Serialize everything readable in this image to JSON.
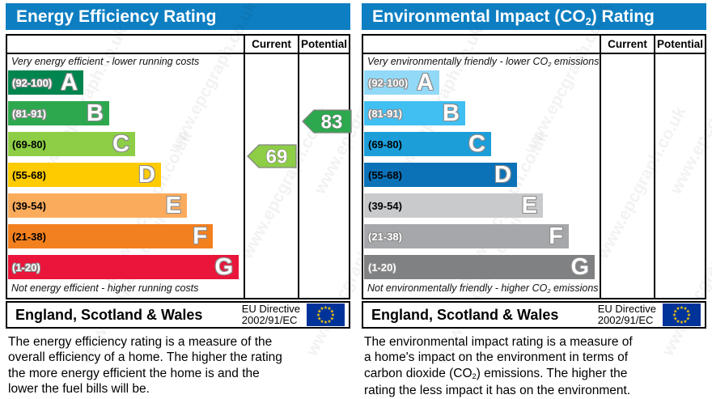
{
  "watermark": "www.epcgraph.co.uk",
  "panels": [
    {
      "title_parts": {
        "pre": "Energy Efficiency Rating",
        "sub": "",
        "post": ""
      },
      "columns": {
        "current": "Current",
        "potential": "Potential"
      },
      "top_caption_parts": {
        "pre": "Very energy efficient - lower running costs",
        "sub": "",
        "post": ""
      },
      "bottom_caption_parts": {
        "pre": "Not energy efficient - higher running costs",
        "sub": "",
        "post": ""
      },
      "bands": [
        {
          "letter": "A",
          "range": "(92-100)",
          "color": "#00854f",
          "label_color": "#ffffff"
        },
        {
          "letter": "B",
          "range": "(81-91)",
          "color": "#2da84e",
          "label_color": "#ffffff"
        },
        {
          "letter": "C",
          "range": "(69-80)",
          "color": "#8dce46",
          "label_color": "#000000"
        },
        {
          "letter": "D",
          "range": "(55-68)",
          "color": "#fecb00",
          "label_color": "#000000"
        },
        {
          "letter": "E",
          "range": "(39-54)",
          "color": "#fbab5c",
          "label_color": "#000000"
        },
        {
          "letter": "F",
          "range": "(21-38)",
          "color": "#f3801e",
          "label_color": "#000000"
        },
        {
          "letter": "G",
          "range": "(1-20)",
          "color": "#e9153b",
          "label_color": "#ffffff"
        }
      ],
      "current_arrow": {
        "value": "69",
        "color": "#8dce46"
      },
      "potential_arrow": {
        "value": "83",
        "color": "#2da84e"
      },
      "region": "England, Scotland & Wales",
      "directive_line1": "EU Directive",
      "directive_line2": "2002/91/EC",
      "description_parts": {
        "pre": "The energy efficiency rating is a measure of the\noverall efficiency of a home. The higher the rating\nthe more energy efficient the home is and the\nlower the fuel bills will be.",
        "sub": "",
        "post": ""
      }
    },
    {
      "title_parts": {
        "pre": "Environmental Impact (CO",
        "sub": "2",
        "post": ") Rating"
      },
      "columns": {
        "current": "Current",
        "potential": "Potential"
      },
      "top_caption_parts": {
        "pre": "Very environmentally friendly - lower CO",
        "sub": "2",
        "post": " emissions"
      },
      "bottom_caption_parts": {
        "pre": "Not environmentally friendly - higher CO",
        "sub": "2",
        "post": " emissions"
      },
      "bands": [
        {
          "letter": "A",
          "range": "(92-100)",
          "color": "#92d9f8",
          "label_color": "#ffffff"
        },
        {
          "letter": "B",
          "range": "(81-91)",
          "color": "#40bff2",
          "label_color": "#ffffff"
        },
        {
          "letter": "C",
          "range": "(69-80)",
          "color": "#1c9ed9",
          "label_color": "#000000"
        },
        {
          "letter": "D",
          "range": "(55-68)",
          "color": "#0b72b8",
          "label_color": "#000000"
        },
        {
          "letter": "E",
          "range": "(39-54)",
          "color": "#c9cacc",
          "label_color": "#000000"
        },
        {
          "letter": "F",
          "range": "(21-38)",
          "color": "#a5a7aa",
          "label_color": "#ffffff"
        },
        {
          "letter": "G",
          "range": "(1-20)",
          "color": "#7f8183",
          "label_color": "#ffffff"
        }
      ],
      "current_arrow": null,
      "potential_arrow": null,
      "region": "England, Scotland & Wales",
      "directive_line1": "EU Directive",
      "directive_line2": "2002/91/EC",
      "description_parts": {
        "pre": "The environmental impact rating is a measure of\na home's impact on the environment in terms of\ncarbon dioxide (CO",
        "sub": "2",
        "post": ") emissions. The higher the\nrating the less impact it has on the environment."
      }
    }
  ],
  "chart_data": [
    {
      "type": "bar",
      "title": "Energy Efficiency Rating",
      "categories": [
        "A",
        "B",
        "C",
        "D",
        "E",
        "F",
        "G"
      ],
      "ranges": [
        "92-100",
        "81-91",
        "69-80",
        "55-68",
        "39-54",
        "21-38",
        "1-20"
      ],
      "band_colors": [
        "#00854f",
        "#2da84e",
        "#8dce46",
        "#fecb00",
        "#fbab5c",
        "#f3801e",
        "#e9153b"
      ],
      "current": 69,
      "current_band": "C",
      "potential": 83,
      "potential_band": "B",
      "columns": [
        "Current",
        "Potential"
      ],
      "top_caption": "Very energy efficient - lower running costs",
      "bottom_caption": "Not energy efficient - higher running costs",
      "region": "England, Scotland & Wales",
      "directive": "EU Directive 2002/91/EC"
    },
    {
      "type": "bar",
      "title": "Environmental Impact (CO2) Rating",
      "categories": [
        "A",
        "B",
        "C",
        "D",
        "E",
        "F",
        "G"
      ],
      "ranges": [
        "92-100",
        "81-91",
        "69-80",
        "55-68",
        "39-54",
        "21-38",
        "1-20"
      ],
      "band_colors": [
        "#92d9f8",
        "#40bff2",
        "#1c9ed9",
        "#0b72b8",
        "#c9cacc",
        "#a5a7aa",
        "#7f8183"
      ],
      "current": null,
      "potential": null,
      "columns": [
        "Current",
        "Potential"
      ],
      "top_caption": "Very environmentally friendly - lower CO2 emissions",
      "bottom_caption": "Not environmentally friendly - higher CO2 emissions",
      "region": "England, Scotland & Wales",
      "directive": "EU Directive 2002/91/EC"
    }
  ]
}
